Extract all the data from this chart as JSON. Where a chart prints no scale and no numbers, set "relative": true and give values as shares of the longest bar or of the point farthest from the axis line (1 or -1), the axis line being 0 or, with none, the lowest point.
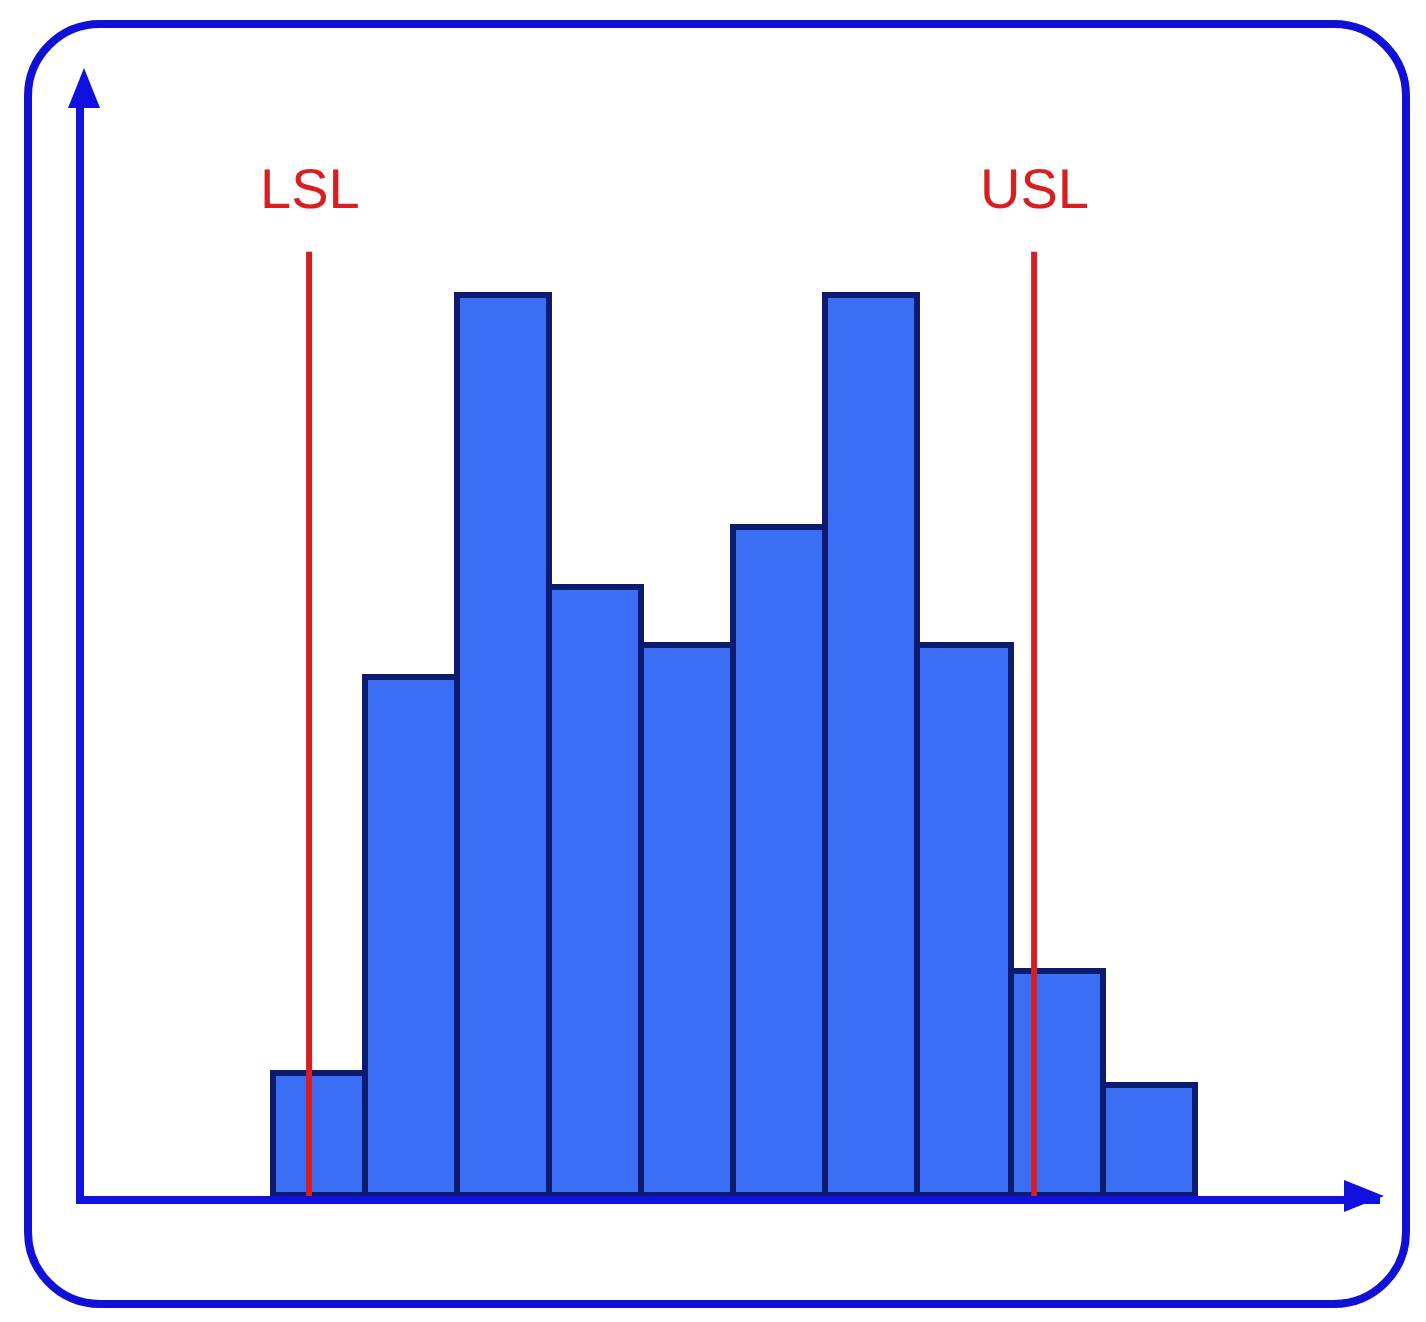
{
  "chart_data": {
    "type": "bar",
    "relative": true,
    "categories": [
      null,
      null,
      null,
      null,
      null,
      null,
      null,
      null,
      null,
      null
    ],
    "values": [
      0.135,
      0.576,
      1,
      0.676,
      0.612,
      0.743,
      1,
      0.612,
      0.25,
      0.122
    ],
    "color": "#3a6ff5",
    "annotations": [
      "LSL",
      "USL"
    ]
  }
}
